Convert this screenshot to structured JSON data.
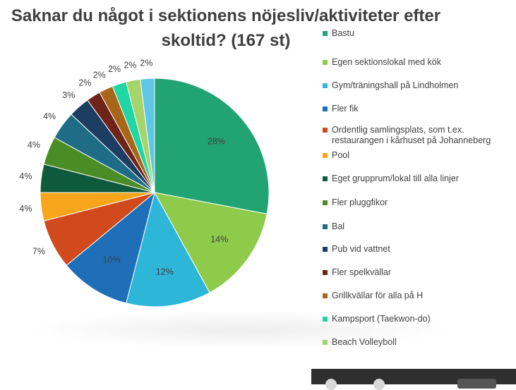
{
  "title_line1": "Saknar du något i sektionens nöjesliv/aktiviteter efter",
  "title_line2": "skoltid? (167 st)",
  "chart_data": {
    "type": "pie",
    "title": "Saknar du något i sektionens nöjesliv/aktiviteter efter skoltid? (167 st)",
    "legend_position": "right",
    "categories": [
      "Bastu",
      "Egen sektionslokal med kök",
      "Gym/träningshall på Lindholmen",
      "Fler fik",
      "Ordentlig samlingsplats, som t.ex. restaurangen i kårhuset på Johanneberg",
      "Pool",
      "Eget grupprum/lokal till alla linjer",
      "Fler pluggfikor",
      "Bal",
      "Pub vid vattnet",
      "Fler spelkvällar",
      "Grillkvällar för alla på H",
      "Kampsport (Taekwon-do)",
      "Beach Volleyboll",
      ""
    ],
    "values": [
      28,
      14,
      12,
      10,
      7,
      4,
      4,
      4,
      4,
      3,
      2,
      2,
      2,
      2,
      2
    ],
    "labels": [
      "28%",
      "14%",
      "12%",
      "10%",
      "7%",
      "4%",
      "4%",
      "4%",
      "4%",
      "3%",
      "2%",
      "2%",
      "2%",
      "2%",
      "2%"
    ],
    "colors": [
      "#22a373",
      "#8ecb4a",
      "#2eb6d9",
      "#1f6fb8",
      "#d04a1e",
      "#f7a51a",
      "#0f5a3c",
      "#4a8c26",
      "#1f6c86",
      "#1d3d63",
      "#6e2418",
      "#a86618",
      "#20d6a5",
      "#a6d36a",
      "#5ec7e6"
    ]
  }
}
